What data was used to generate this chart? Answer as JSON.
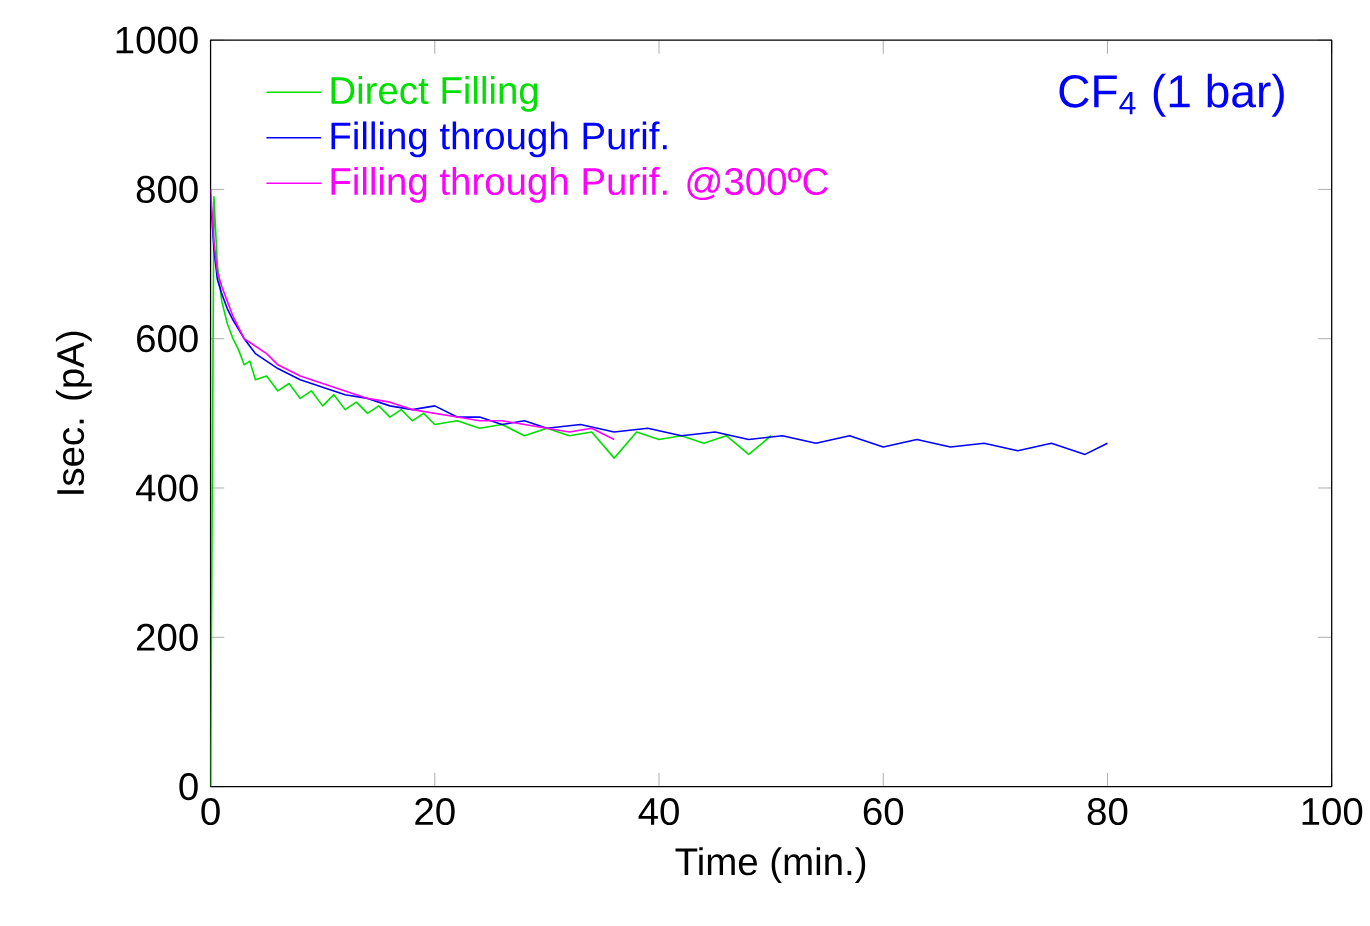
{
  "chart_data": {
    "type": "line",
    "xlabel": "Time (min.)",
    "ylabel": "Isec. (pA)",
    "annotations": [
      "CF$_{4}$ (1 bar)"
    ],
    "xlim": [
      0,
      100
    ],
    "xticks": [
      0,
      20,
      40,
      60,
      80,
      100
    ],
    "ylim": [
      0,
      1000
    ],
    "yticks": [
      0,
      200,
      400,
      600,
      800,
      1000
    ],
    "legend": "top left",
    "grid": false,
    "marker": "none",
    "line_style": "solid",
    "series": [
      {
        "name": "Direct Filling",
        "color": "#00e000",
        "x": [
          0,
          0.3,
          0.6,
          1,
          1.5,
          2,
          2.5,
          3,
          3.5,
          4,
          5,
          6,
          7,
          8,
          9,
          10,
          11,
          12,
          13,
          14,
          15,
          16,
          17,
          18,
          19,
          20,
          22,
          24,
          26,
          28,
          30,
          32,
          34,
          36,
          38,
          40,
          42,
          44,
          46,
          48,
          50
        ],
        "values": [
          0,
          790,
          700,
          650,
          620,
          600,
          585,
          565,
          570,
          545,
          550,
          530,
          540,
          520,
          530,
          510,
          525,
          505,
          515,
          500,
          510,
          495,
          505,
          490,
          500,
          485,
          490,
          480,
          485,
          470,
          480,
          470,
          475,
          440,
          475,
          465,
          470,
          460,
          470,
          445,
          470
        ]
      },
      {
        "name": "Filling through Purif.",
        "color": "#0000ff",
        "x": [
          0,
          0.3,
          0.6,
          1,
          1.5,
          2,
          3,
          4,
          5,
          6,
          8,
          10,
          12,
          14,
          16,
          18,
          20,
          22,
          24,
          26,
          28,
          30,
          33,
          36,
          39,
          42,
          45,
          48,
          51,
          54,
          57,
          60,
          63,
          66,
          69,
          72,
          75,
          78,
          80
        ],
        "values": [
          790,
          720,
          680,
          660,
          640,
          625,
          600,
          580,
          570,
          560,
          545,
          535,
          525,
          520,
          510,
          505,
          510,
          495,
          495,
          485,
          490,
          480,
          485,
          475,
          480,
          470,
          475,
          465,
          470,
          460,
          470,
          455,
          465,
          455,
          460,
          450,
          460,
          445,
          460
        ]
      },
      {
        "name": "Filling through Purif. @300ºC",
        "color": "#ff00ff",
        "x": [
          0,
          0.3,
          0.6,
          1,
          1.5,
          2,
          3,
          4,
          5,
          6,
          8,
          10,
          12,
          14,
          16,
          18,
          20,
          22,
          24,
          26,
          28,
          30,
          32,
          34,
          36
        ],
        "values": [
          800,
          730,
          690,
          670,
          650,
          630,
          600,
          590,
          580,
          565,
          550,
          540,
          530,
          520,
          515,
          505,
          500,
          495,
          490,
          490,
          485,
          480,
          475,
          480,
          465
        ]
      }
    ]
  }
}
